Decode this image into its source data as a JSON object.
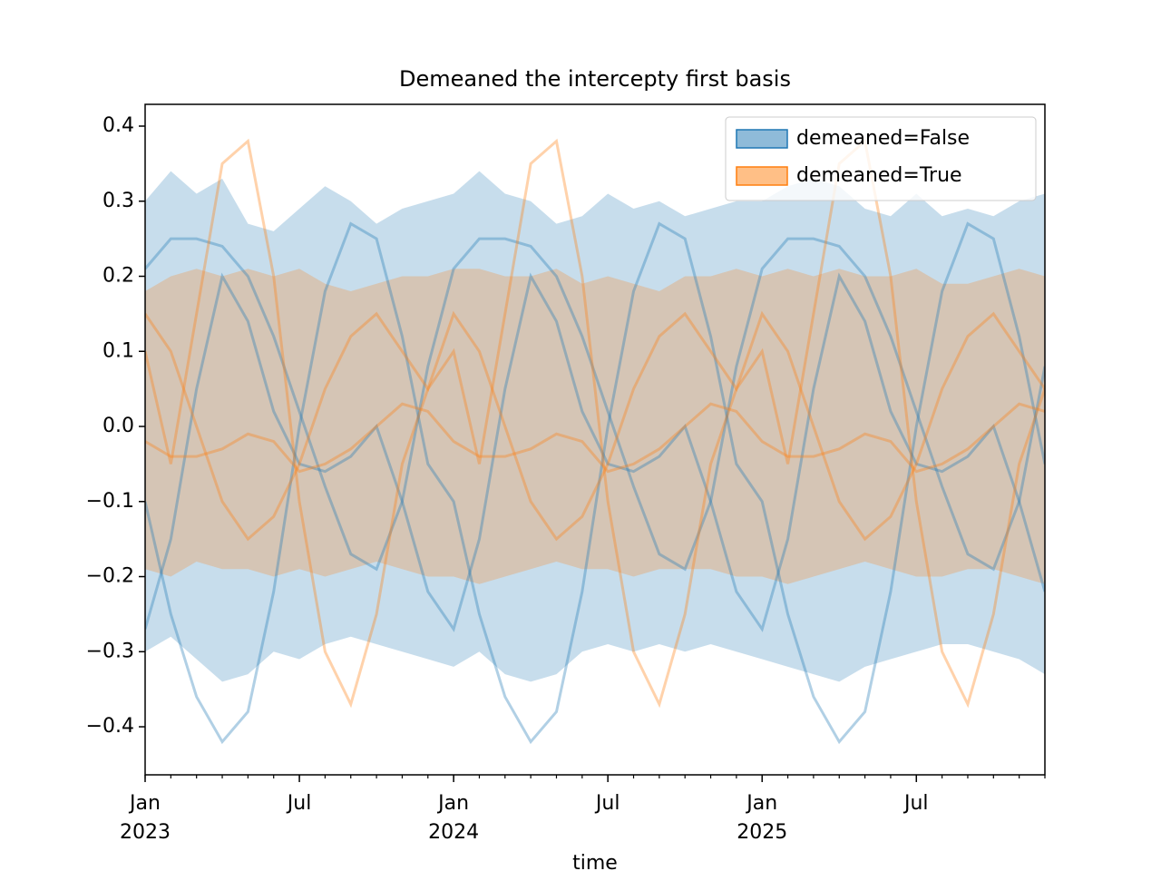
{
  "chart_data": {
    "type": "band-line",
    "title": "Demeaned the intercepty first basis",
    "xlabel": "time",
    "x": [
      "2023-01",
      "2023-02",
      "2023-03",
      "2023-04",
      "2023-05",
      "2023-06",
      "2023-07",
      "2023-08",
      "2023-09",
      "2023-10",
      "2023-11",
      "2023-12",
      "2024-01",
      "2024-02",
      "2024-03",
      "2024-04",
      "2024-05",
      "2024-06",
      "2024-07",
      "2024-08",
      "2024-09",
      "2024-10",
      "2024-11",
      "2024-12",
      "2025-01",
      "2025-02",
      "2025-03",
      "2025-04",
      "2025-05",
      "2025-06",
      "2025-07",
      "2025-08",
      "2025-09",
      "2025-10",
      "2025-11",
      "2025-12"
    ],
    "xlim": [
      "2023-01",
      "2025-12"
    ],
    "xticks": [
      {
        "value": "2023-01",
        "label": [
          "Jan",
          "2023"
        ]
      },
      {
        "value": "2023-07",
        "label": [
          "Jul"
        ]
      },
      {
        "value": "2024-01",
        "label": [
          "Jan",
          "2024"
        ]
      },
      {
        "value": "2024-07",
        "label": [
          "Jul"
        ]
      },
      {
        "value": "2025-01",
        "label": [
          "Jan",
          "2025"
        ]
      },
      {
        "value": "2025-07",
        "label": [
          "Jul"
        ]
      }
    ],
    "ylim": [
      -0.464,
      0.429
    ],
    "yticks": [
      {
        "value": -0.4,
        "label": "−0.4"
      },
      {
        "value": -0.3,
        "label": "−0.3"
      },
      {
        "value": -0.2,
        "label": "−0.2"
      },
      {
        "value": -0.1,
        "label": "−0.1"
      },
      {
        "value": 0,
        "label": "0.0"
      },
      0.1,
      0.2,
      0.3,
      0.4
    ],
    "legend": "upper right",
    "series": [
      {
        "name": "demeaned=False",
        "color": "#1f77b4",
        "upper": [
          0.3,
          0.34,
          0.31,
          0.33,
          0.27,
          0.26,
          0.29,
          0.32,
          0.3,
          0.27,
          0.29,
          0.3,
          0.31,
          0.34,
          0.31,
          0.3,
          0.27,
          0.28,
          0.31,
          0.29,
          0.3,
          0.28,
          0.29,
          0.3,
          0.3,
          0.32,
          0.33,
          0.32,
          0.29,
          0.28,
          0.31,
          0.28,
          0.29,
          0.28,
          0.3,
          0.31
        ],
        "lower": [
          -0.3,
          -0.28,
          -0.31,
          -0.34,
          -0.33,
          -0.3,
          -0.31,
          -0.29,
          -0.28,
          -0.29,
          -0.3,
          -0.31,
          -0.32,
          -0.3,
          -0.33,
          -0.34,
          -0.33,
          -0.3,
          -0.29,
          -0.3,
          -0.29,
          -0.3,
          -0.29,
          -0.3,
          -0.31,
          -0.32,
          -0.33,
          -0.34,
          -0.32,
          -0.31,
          -0.3,
          -0.29,
          -0.29,
          -0.3,
          -0.31,
          -0.33
        ],
        "samples": [
          [
            -0.1,
            -0.25,
            -0.36,
            -0.42,
            -0.38,
            -0.22,
            0.0,
            0.18,
            0.27,
            0.25,
            0.12,
            -0.05,
            -0.1,
            -0.25,
            -0.36,
            -0.42,
            -0.38,
            -0.22,
            0.0,
            0.18,
            0.27,
            0.25,
            0.12,
            -0.05,
            -0.1,
            -0.25,
            -0.36,
            -0.42,
            -0.38,
            -0.22,
            0.0,
            0.18,
            0.27,
            0.25,
            0.12,
            -0.05
          ],
          [
            0.21,
            0.25,
            0.25,
            0.24,
            0.2,
            0.12,
            0.02,
            -0.08,
            -0.17,
            -0.19,
            -0.1,
            0.08,
            0.21,
            0.25,
            0.25,
            0.24,
            0.2,
            0.12,
            0.02,
            -0.08,
            -0.17,
            -0.19,
            -0.1,
            0.08,
            0.21,
            0.25,
            0.25,
            0.24,
            0.2,
            0.12,
            0.02,
            -0.08,
            -0.17,
            -0.19,
            -0.1,
            0.08
          ],
          [
            -0.27,
            -0.15,
            0.05,
            0.2,
            0.14,
            0.02,
            -0.05,
            -0.06,
            -0.04,
            0.0,
            -0.1,
            -0.22,
            -0.27,
            -0.15,
            0.05,
            0.2,
            0.14,
            0.02,
            -0.05,
            -0.06,
            -0.04,
            0.0,
            -0.1,
            -0.22,
            -0.27,
            -0.15,
            0.05,
            0.2,
            0.14,
            0.02,
            -0.05,
            -0.06,
            -0.04,
            0.0,
            -0.1,
            -0.22
          ]
        ]
      },
      {
        "name": "demeaned=True",
        "color": "#ff7f0e",
        "upper": [
          0.18,
          0.2,
          0.21,
          0.2,
          0.21,
          0.2,
          0.21,
          0.19,
          0.18,
          0.19,
          0.2,
          0.2,
          0.21,
          0.21,
          0.2,
          0.2,
          0.21,
          0.19,
          0.2,
          0.19,
          0.18,
          0.2,
          0.2,
          0.21,
          0.2,
          0.21,
          0.2,
          0.21,
          0.2,
          0.2,
          0.21,
          0.19,
          0.19,
          0.2,
          0.21,
          0.2
        ],
        "lower": [
          -0.19,
          -0.2,
          -0.18,
          -0.19,
          -0.19,
          -0.2,
          -0.19,
          -0.2,
          -0.19,
          -0.18,
          -0.19,
          -0.2,
          -0.2,
          -0.21,
          -0.2,
          -0.19,
          -0.18,
          -0.19,
          -0.19,
          -0.2,
          -0.19,
          -0.19,
          -0.19,
          -0.2,
          -0.2,
          -0.21,
          -0.2,
          -0.19,
          -0.18,
          -0.19,
          -0.2,
          -0.2,
          -0.19,
          -0.19,
          -0.2,
          -0.21
        ],
        "samples": [
          [
            0.1,
            -0.05,
            0.15,
            0.35,
            0.38,
            0.2,
            -0.1,
            -0.3,
            -0.37,
            -0.25,
            -0.05,
            0.05,
            0.1,
            -0.05,
            0.15,
            0.35,
            0.38,
            0.2,
            -0.1,
            -0.3,
            -0.37,
            -0.25,
            -0.05,
            0.05,
            0.1,
            -0.05,
            0.15,
            0.35,
            0.38,
            0.2,
            -0.1,
            -0.3,
            -0.37,
            -0.25,
            -0.05,
            0.05
          ],
          [
            -0.02,
            -0.04,
            -0.04,
            -0.03,
            -0.01,
            -0.02,
            -0.06,
            -0.05,
            -0.03,
            0.0,
            0.03,
            0.02,
            -0.02,
            -0.04,
            -0.04,
            -0.03,
            -0.01,
            -0.02,
            -0.06,
            -0.05,
            -0.03,
            0.0,
            0.03,
            0.02,
            -0.02,
            -0.04,
            -0.04,
            -0.03,
            -0.01,
            -0.02,
            -0.06,
            -0.05,
            -0.03,
            0.0,
            0.03,
            0.02
          ],
          [
            0.15,
            0.1,
            0.0,
            -0.1,
            -0.15,
            -0.12,
            -0.05,
            0.05,
            0.12,
            0.15,
            0.1,
            0.05,
            0.15,
            0.1,
            0.0,
            -0.1,
            -0.15,
            -0.12,
            -0.05,
            0.05,
            0.12,
            0.15,
            0.1,
            0.05,
            0.15,
            0.1,
            0.0,
            -0.1,
            -0.15,
            -0.12,
            -0.05,
            0.05,
            0.12,
            0.15,
            0.1,
            0.05
          ]
        ]
      }
    ]
  }
}
